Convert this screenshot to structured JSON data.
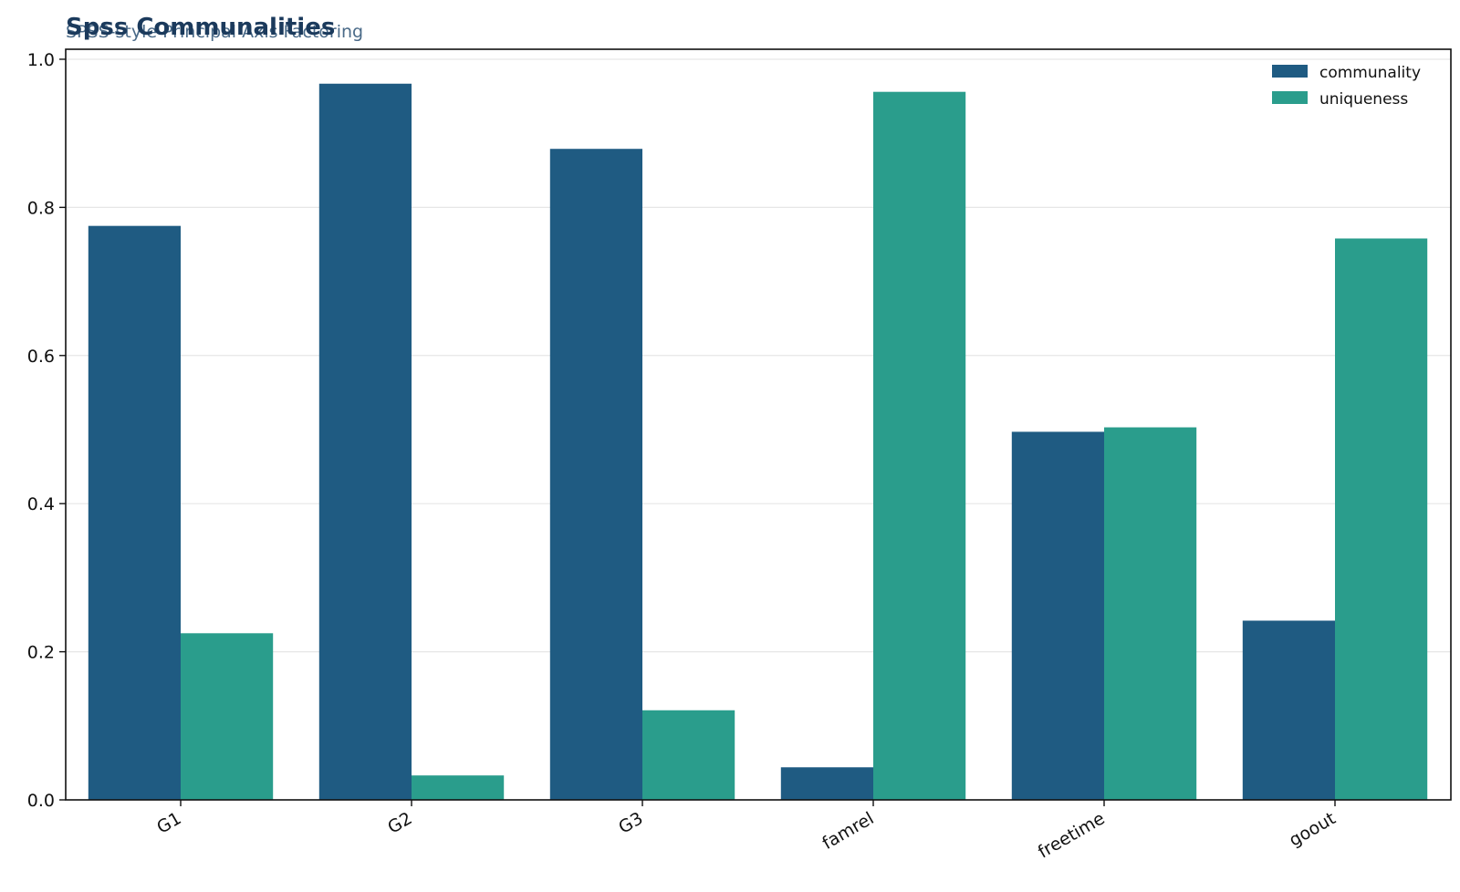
{
  "colors": {
    "communality": "#1f5b82",
    "uniqueness": "#2a9d8c",
    "grid": "#e6e6e6",
    "axis": "#111111",
    "title": "#1b3a5c",
    "subtitle": "#4a6a88"
  },
  "chart_data": {
    "type": "bar",
    "title": "Spss Communalities",
    "subtitle": "SPSS-style Principal Axis Factoring",
    "xlabel": "",
    "ylabel": "",
    "categories": [
      "G1",
      "G2",
      "G3",
      "famrel",
      "freetime",
      "goout"
    ],
    "series": [
      {
        "name": "communality",
        "values": [
          0.775,
          0.967,
          0.879,
          0.044,
          0.497,
          0.242
        ]
      },
      {
        "name": "uniqueness",
        "values": [
          0.225,
          0.033,
          0.121,
          0.956,
          0.503,
          0.758
        ]
      }
    ],
    "ylim": [
      0,
      1.0
    ],
    "yticks": [
      "0.0",
      "0.2",
      "0.4",
      "0.6",
      "0.8",
      "1.0"
    ],
    "grid": "horizontal",
    "legend_position": "top-right"
  }
}
